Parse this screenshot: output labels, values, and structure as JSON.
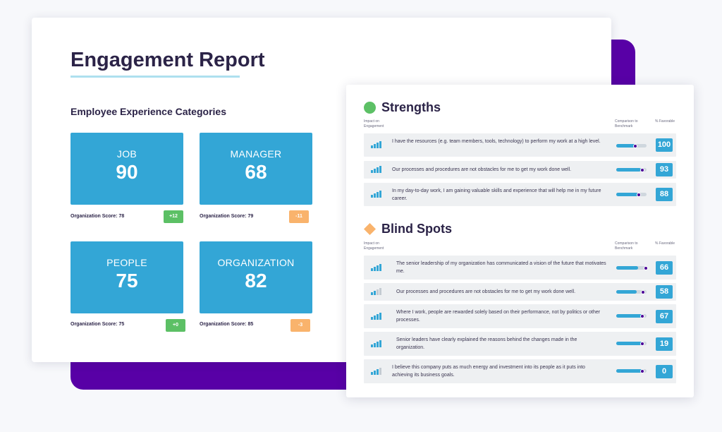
{
  "report": {
    "title": "Engagement Report",
    "categories_heading": "Employee Experience Categories",
    "categories": [
      {
        "name": "JOB",
        "score": "90",
        "org_score_text": "Organization Score: 78",
        "delta": "+12",
        "delta_color": "#5cc065"
      },
      {
        "name": "MANAGER",
        "score": "68",
        "org_score_text": "Organization Score: 79",
        "delta": "-11",
        "delta_color": "#f9b36c"
      },
      {
        "name": "PEOPLE",
        "score": "75",
        "org_score_text": "Organization Score: 75",
        "delta": "+0",
        "delta_color": "#5cc065"
      },
      {
        "name": "ORGANIZATION",
        "score": "82",
        "org_score_text": "Organization Score: 85",
        "delta": "-3",
        "delta_color": "#f9b36c"
      }
    ]
  },
  "columns": {
    "impact": "Impact on Engagement",
    "comparison": "Comparison to Benchmark",
    "favorable": "% Favorable"
  },
  "strengths": {
    "title": "Strengths",
    "icon": "green-circle-icon",
    "icon_color": "#5cc065",
    "items": [
      {
        "text": "I have the resources (e.g. team members, tools, technology) to perform my work at a high level.",
        "favorable": "100",
        "impact_level": 4,
        "benchmark": 0.62,
        "benchmark_marker": 0.62
      },
      {
        "text": "Our processes and procedures are not obstacles for me to get my work done well.",
        "favorable": "93",
        "impact_level": 4,
        "benchmark": 0.82,
        "benchmark_marker": 0.86
      },
      {
        "text": "In my day-to-day work, I am gaining valuable skills and experience that will help me in my future career.",
        "favorable": "88",
        "impact_level": 4,
        "benchmark": 0.72,
        "benchmark_marker": 0.74
      }
    ]
  },
  "blind_spots": {
    "title": "Blind Spots",
    "icon": "orange-diamond-icon",
    "icon_color": "#f9b36c",
    "items": [
      {
        "text": "The senior leadership of my organization has communicated a vision of the future that motivates me.",
        "favorable": "66",
        "impact_level": 4,
        "benchmark": 0.72,
        "benchmark_marker": 0.98
      },
      {
        "text": "Our processes and procedures are not obstacles for me to get my work done well.",
        "favorable": "58",
        "impact_level": 2,
        "benchmark": 0.68,
        "benchmark_marker": 0.88
      },
      {
        "text": "Where I work, people are rewarded solely based on their performance, not by politics or other processes.",
        "favorable": "67",
        "impact_level": 4,
        "benchmark": 0.85,
        "benchmark_marker": 0.85
      },
      {
        "text": "Senior leaders have clearly explained the reasons behind the changes made in the organization.",
        "favorable": "19",
        "impact_level": 4,
        "benchmark": 0.85,
        "benchmark_marker": 0.85
      },
      {
        "text": "I believe this company puts as much energy and investment into its people as it puts into achieving its business goals.",
        "favorable": "0",
        "impact_level": 3,
        "benchmark": 0.85,
        "benchmark_marker": 0.85
      }
    ]
  },
  "colors": {
    "accent": "#33a6d6",
    "purple": "#5800a6",
    "title_text": "#2b2347"
  }
}
